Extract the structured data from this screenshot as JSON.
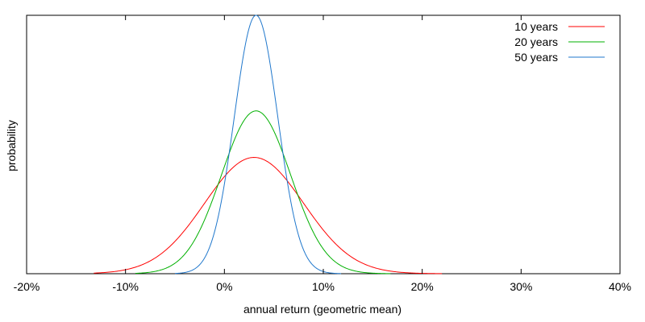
{
  "chart_data": {
    "type": "line",
    "xlabel": "annual return (geometric mean)",
    "ylabel": "probability",
    "xlim": [
      -20,
      40
    ],
    "xticks": [
      -20,
      -10,
      0,
      10,
      20,
      30,
      40
    ],
    "xtick_labels": [
      "-20%",
      "-10%",
      "0%",
      "10%",
      "20%",
      "30%",
      "40%"
    ],
    "y_tick_labels_shown": false,
    "grid": false,
    "legend_position": "top-right",
    "ylim": [
      0,
      1
    ],
    "series": [
      {
        "name": "10 years",
        "color": "#ff0000",
        "mean": 3.0,
        "sd": 5.0,
        "x_range": [
          -13.2,
          22.0
        ],
        "peak": 0.45
      },
      {
        "name": "20 years",
        "color": "#00b000",
        "mean": 3.2,
        "sd": 3.5,
        "x_range": [
          -9.0,
          16.8
        ],
        "peak": 0.63
      },
      {
        "name": "50 years",
        "color": "#1f77cc",
        "mean": 3.2,
        "sd": 2.2,
        "x_range": [
          -5.0,
          11.8
        ],
        "peak": 1.0
      }
    ]
  }
}
